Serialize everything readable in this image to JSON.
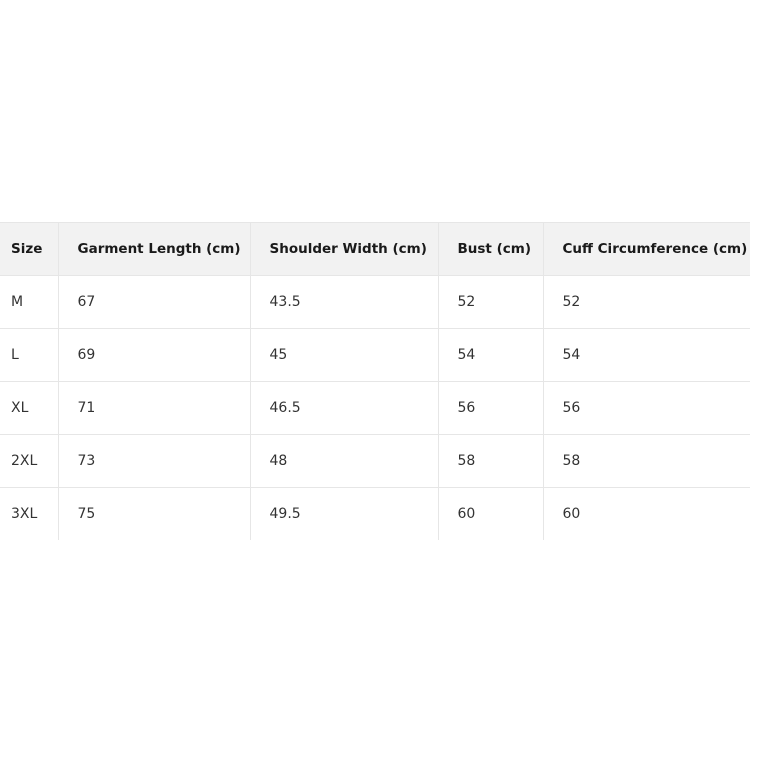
{
  "table": {
    "headers": [
      "Size",
      "Garment Length (cm)",
      "Shoulder Width (cm)",
      "Bust (cm)",
      "Cuff Circumference (cm)"
    ],
    "rows": [
      [
        "M",
        "67",
        "43.5",
        "52",
        "52"
      ],
      [
        "L",
        "69",
        "45",
        "54",
        "54"
      ],
      [
        "XL",
        "71",
        "46.5",
        "56",
        "56"
      ],
      [
        "2XL",
        "73",
        "48",
        "58",
        "58"
      ],
      [
        "3XL",
        "75",
        "49.5",
        "60",
        "60"
      ]
    ]
  }
}
